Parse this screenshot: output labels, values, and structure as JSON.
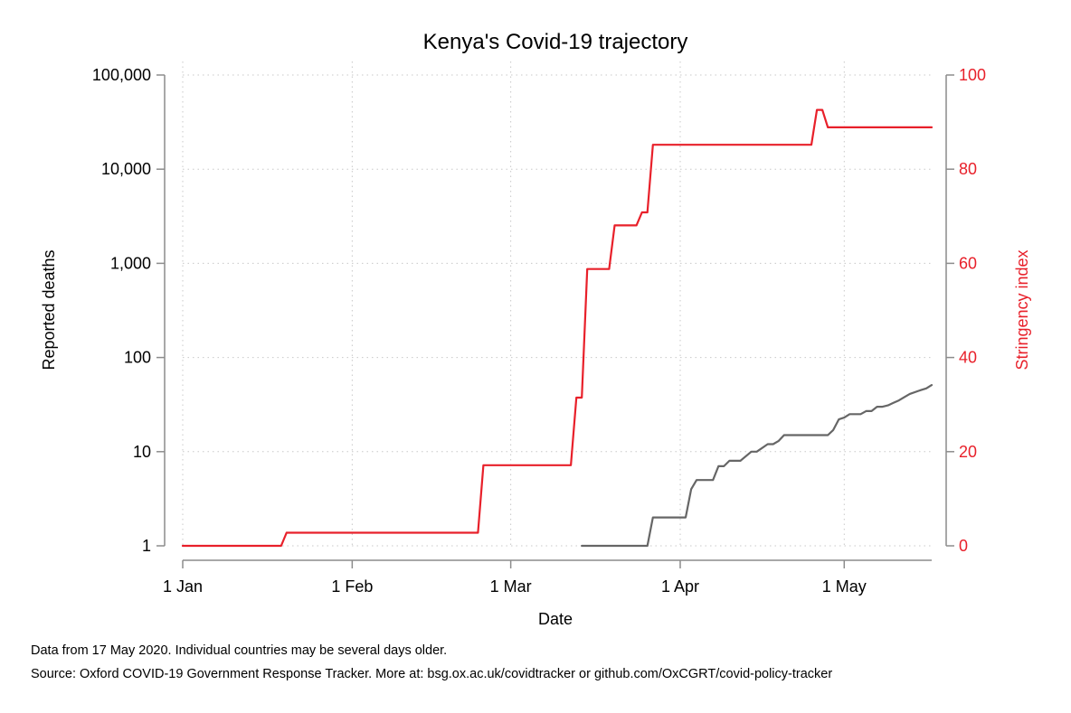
{
  "chart_data": {
    "type": "line",
    "title": "Kenya's Covid-19 trajectory",
    "xlabel": "Date",
    "x_ticks": [
      {
        "date": "2020-01-01",
        "label": "1 Jan"
      },
      {
        "date": "2020-02-01",
        "label": "1 Feb"
      },
      {
        "date": "2020-03-01",
        "label": "1 Mar"
      },
      {
        "date": "2020-04-01",
        "label": "1 Apr"
      },
      {
        "date": "2020-05-01",
        "label": "1 May"
      }
    ],
    "xlim": [
      "2020-01-01",
      "2020-05-17"
    ],
    "grid": true,
    "left_axis": {
      "label": "Reported deaths",
      "scale": "log",
      "ylim": [
        1,
        100000
      ],
      "ticks": [
        1,
        10,
        100,
        1000,
        10000,
        100000
      ],
      "tick_labels": [
        "1",
        "10",
        "100",
        "1,000",
        "10,000",
        "100,000"
      ],
      "color": "#000000"
    },
    "right_axis": {
      "label": "Stringency index",
      "scale": "linear",
      "ylim": [
        0,
        100
      ],
      "ticks": [
        0,
        20,
        40,
        60,
        80,
        100
      ],
      "tick_labels": [
        "0",
        "20",
        "40",
        "60",
        "80",
        "100"
      ],
      "color": "#e8202a"
    },
    "series": [
      {
        "axis": "right",
        "color": "#e8202a",
        "points": [
          [
            "2020-01-01",
            0
          ],
          [
            "2020-01-19",
            0
          ],
          [
            "2020-01-20",
            2.78
          ],
          [
            "2020-02-24",
            2.78
          ],
          [
            "2020-02-25",
            17.13
          ],
          [
            "2020-03-12",
            17.13
          ],
          [
            "2020-03-13",
            31.48
          ],
          [
            "2020-03-14",
            31.48
          ],
          [
            "2020-03-15",
            58.8
          ],
          [
            "2020-03-19",
            58.8
          ],
          [
            "2020-03-20",
            68.06
          ],
          [
            "2020-03-24",
            68.06
          ],
          [
            "2020-03-25",
            70.83
          ],
          [
            "2020-03-26",
            70.83
          ],
          [
            "2020-03-27",
            85.19
          ],
          [
            "2020-04-25",
            85.19
          ],
          [
            "2020-04-26",
            92.59
          ],
          [
            "2020-04-27",
            92.59
          ],
          [
            "2020-04-28",
            88.89
          ],
          [
            "2020-05-17",
            88.89
          ]
        ]
      },
      {
        "axis": "left",
        "color": "#666666",
        "points": [
          [
            "2020-03-14",
            1
          ],
          [
            "2020-03-26",
            1
          ],
          [
            "2020-03-27",
            2
          ],
          [
            "2020-04-02",
            2
          ],
          [
            "2020-04-03",
            4
          ],
          [
            "2020-04-04",
            5
          ],
          [
            "2020-04-07",
            5
          ],
          [
            "2020-04-08",
            7
          ],
          [
            "2020-04-09",
            7
          ],
          [
            "2020-04-10",
            8
          ],
          [
            "2020-04-12",
            8
          ],
          [
            "2020-04-14",
            10
          ],
          [
            "2020-04-15",
            10
          ],
          [
            "2020-04-17",
            12
          ],
          [
            "2020-04-18",
            12
          ],
          [
            "2020-04-19",
            13
          ],
          [
            "2020-04-20",
            15
          ],
          [
            "2020-04-28",
            15
          ],
          [
            "2020-04-29",
            17
          ],
          [
            "2020-04-30",
            22
          ],
          [
            "2020-05-01",
            23
          ],
          [
            "2020-05-02",
            25
          ],
          [
            "2020-05-04",
            25
          ],
          [
            "2020-05-05",
            27
          ],
          [
            "2020-05-06",
            27
          ],
          [
            "2020-05-07",
            30
          ],
          [
            "2020-05-08",
            30
          ],
          [
            "2020-05-09",
            31
          ],
          [
            "2020-05-10",
            33
          ],
          [
            "2020-05-11",
            35
          ],
          [
            "2020-05-12",
            38
          ],
          [
            "2020-05-13",
            41
          ],
          [
            "2020-05-15",
            45
          ],
          [
            "2020-05-16",
            47
          ],
          [
            "2020-05-17",
            51
          ]
        ]
      }
    ]
  },
  "notes": {
    "line1": "Data from 17 May 2020. Individual countries may be several days older.",
    "line2": "Source: Oxford COVID-19 Government Response Tracker. More at: bsg.ox.ac.uk/covidtracker or github.com/OxCGRT/covid-policy-tracker"
  }
}
